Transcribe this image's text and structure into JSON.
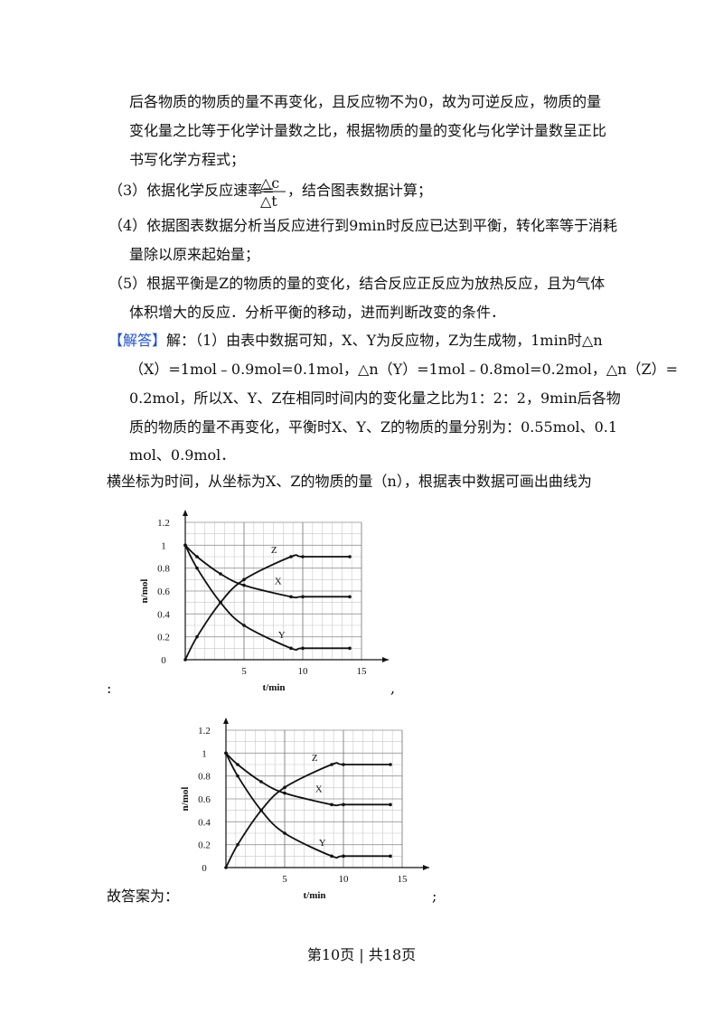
{
  "text": {
    "lines": [
      "后各物质的物质的量不再变化，且反应物不为0，故为可逆反应，物质的量",
      "变化量之比等于化学计量数之比，根据物质的量的变化与化学计量数呈正比",
      "书写化学方程式；"
    ],
    "rate_before": "（3）依据化学反应速率=",
    "rate_num": "△c",
    "rate_den": "△t",
    "rate_after": "，结合图表数据计算；",
    "lines2": [
      "（4）依据图表数据分析当反应进行到9min时反应已达到平衡，转化率等于消耗",
      "量除以原来起始量；",
      "（5）根据平衡是Z的物质的量的变化，结合反应正反应为放热反应，且为气体",
      "体积增大的反应．分析平衡的移动，进而判断改变的条件．"
    ],
    "answer_tag": "【解答】",
    "answer_first": "解：（1）由表中数据可知，X、Y为反应物，Z为生成物，1min时△n",
    "answer_lines": [
      "（X）=1mol﹣0.9mol=0.1mol，△n（Y）=1mol﹣0.8mol=0.2mol，△n（Z）=",
      "0.2mol，所以X、Y、Z在相同时间内的变化量之比为1：2：2，9min后各物",
      "质的物质的量不再变化，平衡时X、Y、Z的物质的量分别为：0.55mol、0.1",
      "mol、0.9mol．"
    ],
    "intro": "横坐标为时间，从坐标为X、Z的物质的量（n），根据表中数据可画出曲线为",
    "chart1_before": ":",
    "chart1_after": ",",
    "answer_label": "故答案为：",
    "answer_end": ";",
    "footer": "第10页 | 共18页"
  },
  "chart_data": [
    {
      "type": "line",
      "x_label": "t/min",
      "y_label": "n/mol",
      "x": [
        0,
        1,
        3,
        5,
        9,
        10,
        14
      ],
      "series": [
        {
          "name": "Z",
          "color": "#111111",
          "values": [
            0,
            0.2,
            0.5,
            0.7,
            0.9,
            0.9,
            0.9
          ]
        },
        {
          "name": "X",
          "color": "#111111",
          "values": [
            1,
            0.9,
            0.75,
            0.65,
            0.55,
            0.55,
            0.55
          ]
        },
        {
          "name": "Y",
          "color": "#111111",
          "values": [
            1,
            0.8,
            0.5,
            0.3,
            0.1,
            0.1,
            0.1
          ]
        }
      ],
      "xlim": [
        0,
        15
      ],
      "ylim": [
        0,
        1.2
      ],
      "xticks": [
        5,
        10,
        15
      ],
      "yticks": [
        0,
        0.2,
        0.4,
        0.6,
        0.8,
        1,
        1.2
      ],
      "grid": true
    },
    {
      "type": "line",
      "x_label": "t/min",
      "y_label": "n/mol",
      "x": [
        0,
        1,
        3,
        5,
        9,
        10,
        14
      ],
      "series": [
        {
          "name": "Z",
          "color": "#111111",
          "values": [
            0,
            0.2,
            0.5,
            0.7,
            0.9,
            0.9,
            0.9
          ]
        },
        {
          "name": "X",
          "color": "#111111",
          "values": [
            1,
            0.9,
            0.75,
            0.65,
            0.55,
            0.55,
            0.55
          ]
        },
        {
          "name": "Y",
          "color": "#111111",
          "values": [
            1,
            0.8,
            0.5,
            0.3,
            0.1,
            0.1,
            0.1
          ]
        }
      ],
      "xlim": [
        0,
        15
      ],
      "ylim": [
        0,
        1.2
      ],
      "xticks": [
        5,
        10,
        15
      ],
      "yticks": [
        0,
        0.2,
        0.4,
        0.6,
        0.8,
        1,
        1.2
      ],
      "grid": true
    }
  ]
}
